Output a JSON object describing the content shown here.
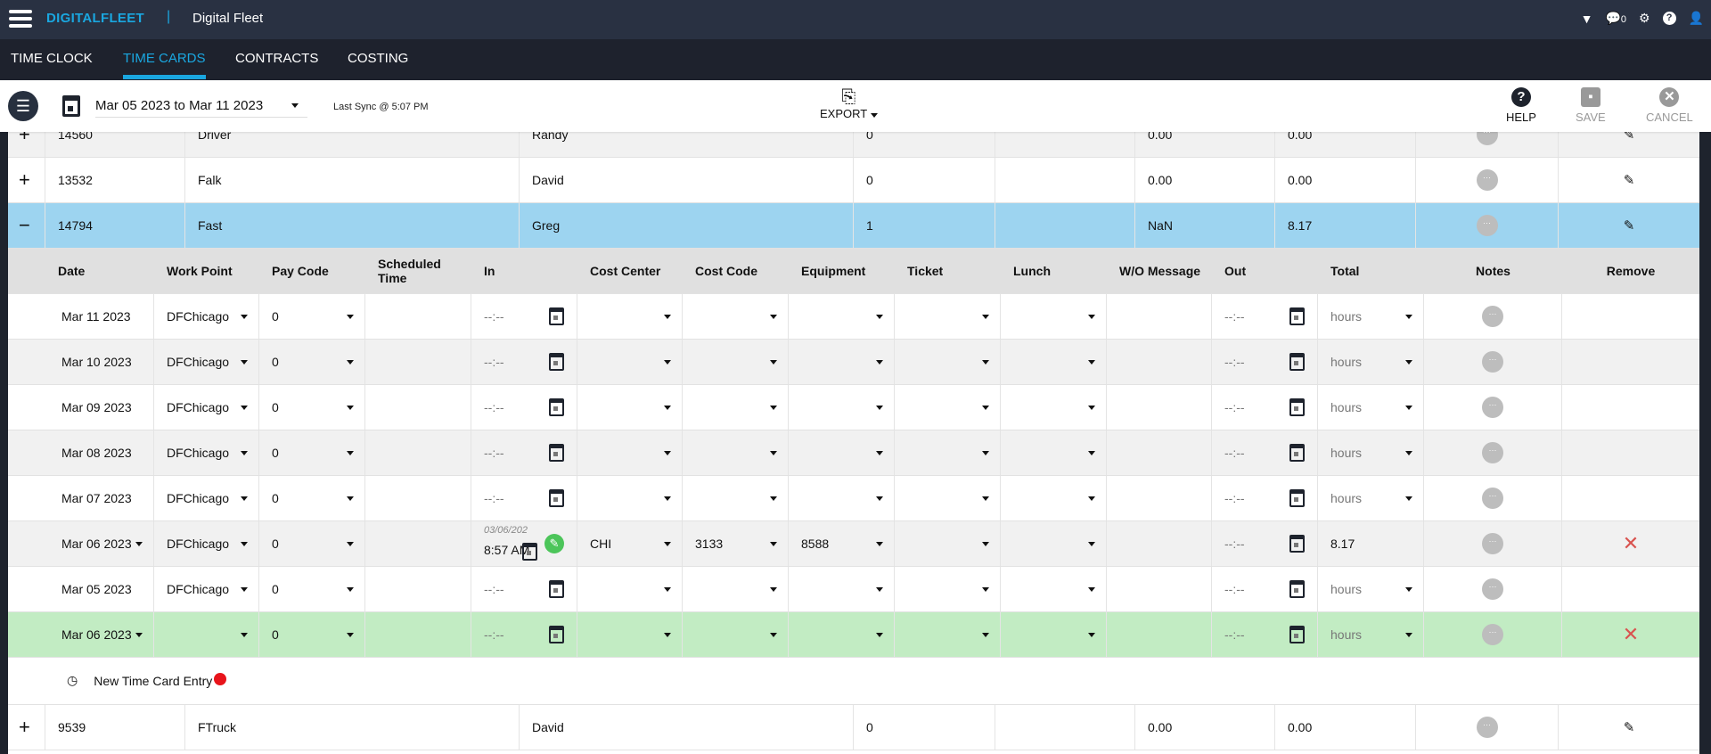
{
  "app": {
    "logo": "DIGITALFLEET",
    "separator": "|",
    "title": "Digital Fleet",
    "notification_count": "0"
  },
  "tabs": [
    {
      "label": "TIME CLOCK",
      "active": false
    },
    {
      "label": "TIME CARDS",
      "active": true
    },
    {
      "label": "CONTRACTS",
      "active": false
    },
    {
      "label": "COSTING",
      "active": false
    }
  ],
  "toolbar": {
    "date_range": "Mar 05 2023 to Mar 11 2023",
    "last_sync": "Last Sync @ 5:07 PM",
    "export": "EXPORT",
    "help": "HELP",
    "save": "SAVE",
    "cancel": "CANCEL"
  },
  "employees_top": [
    {
      "expand": "+",
      "id": "14560",
      "last": "Driver",
      "first": "Randy",
      "c1": "0",
      "c2": "",
      "c3": "0.00",
      "c4": "0.00",
      "bg": "#f1f1f1"
    },
    {
      "expand": "+",
      "id": "13532",
      "last": "Falk",
      "first": "David",
      "c1": "0",
      "c2": "",
      "c3": "0.00",
      "c4": "0.00",
      "bg": "#ffffff"
    },
    {
      "expand": "−",
      "id": "14794",
      "last": "Fast",
      "first": "Greg",
      "c1": "1",
      "c2": "",
      "c3": "NaN",
      "c4": "8.17",
      "bg": "#9dd4f0"
    }
  ],
  "detail_headers": [
    "Date",
    "Work Point",
    "Pay Code",
    "Scheduled Time",
    "In",
    "Cost Center",
    "Cost Code",
    "Equipment",
    "Ticket",
    "Lunch",
    "W/O Message",
    "Out",
    "Total",
    "Notes",
    "Remove"
  ],
  "detail_rows": [
    {
      "date": "Mar 11 2023",
      "date_dd": false,
      "work_point": "DFChicago",
      "pay_code": "0",
      "in": "--:--",
      "in_hint": "",
      "cost_center": "",
      "cost_code": "",
      "equipment": "",
      "ticket": "",
      "lunch": "",
      "out": "--:--",
      "total": "hours",
      "total_placeholder": true,
      "removable": false,
      "bg": "#ffffff"
    },
    {
      "date": "Mar 10 2023",
      "date_dd": false,
      "work_point": "DFChicago",
      "pay_code": "0",
      "in": "--:--",
      "in_hint": "",
      "cost_center": "",
      "cost_code": "",
      "equipment": "",
      "ticket": "",
      "lunch": "",
      "out": "--:--",
      "total": "hours",
      "total_placeholder": true,
      "removable": false,
      "bg": "#f1f1f1"
    },
    {
      "date": "Mar 09 2023",
      "date_dd": false,
      "work_point": "DFChicago",
      "pay_code": "0",
      "in": "--:--",
      "in_hint": "",
      "cost_center": "",
      "cost_code": "",
      "equipment": "",
      "ticket": "",
      "lunch": "",
      "out": "--:--",
      "total": "hours",
      "total_placeholder": true,
      "removable": false,
      "bg": "#ffffff"
    },
    {
      "date": "Mar 08 2023",
      "date_dd": false,
      "work_point": "DFChicago",
      "pay_code": "0",
      "in": "--:--",
      "in_hint": "",
      "cost_center": "",
      "cost_code": "",
      "equipment": "",
      "ticket": "",
      "lunch": "",
      "out": "--:--",
      "total": "hours",
      "total_placeholder": true,
      "removable": false,
      "bg": "#f1f1f1"
    },
    {
      "date": "Mar 07 2023",
      "date_dd": false,
      "work_point": "DFChicago",
      "pay_code": "0",
      "in": "--:--",
      "in_hint": "",
      "cost_center": "",
      "cost_code": "",
      "equipment": "",
      "ticket": "",
      "lunch": "",
      "out": "--:--",
      "total": "hours",
      "total_placeholder": true,
      "removable": false,
      "bg": "#ffffff"
    },
    {
      "date": "Mar 06 2023",
      "date_dd": true,
      "work_point": "DFChicago",
      "pay_code": "0",
      "in": "8:57 AM",
      "in_hint": "03/06/202",
      "cost_center": "CHI",
      "cost_code": "3133",
      "equipment": "8588",
      "ticket": "",
      "lunch": "",
      "out": "--:--",
      "total": "8.17",
      "total_placeholder": false,
      "removable": true,
      "bg": "#f1f1f1"
    },
    {
      "date": "Mar 05 2023",
      "date_dd": false,
      "work_point": "DFChicago",
      "pay_code": "0",
      "in": "--:--",
      "in_hint": "",
      "cost_center": "",
      "cost_code": "",
      "equipment": "",
      "ticket": "",
      "lunch": "",
      "out": "--:--",
      "total": "hours",
      "total_placeholder": true,
      "removable": false,
      "bg": "#ffffff"
    },
    {
      "date": "Mar 06 2023",
      "date_dd": true,
      "work_point": "",
      "pay_code": "0",
      "in": "--:--",
      "in_hint": "",
      "cost_center": "",
      "cost_code": "",
      "equipment": "",
      "ticket": "",
      "lunch": "",
      "out": "--:--",
      "total": "hours",
      "total_placeholder": true,
      "removable": true,
      "bg": "#c2ecc3"
    }
  ],
  "new_entry_label": "New Time Card Entry",
  "employees_bottom": [
    {
      "expand": "+",
      "id": "9539",
      "last": "FTruck",
      "first": "David",
      "c1": "0",
      "c2": "",
      "c3": "0.00",
      "c4": "0.00",
      "bg": "#ffffff"
    }
  ],
  "colors": {
    "accent": "#1aa7e0",
    "selected_row": "#9dd4f0",
    "new_row": "#c2ecc3",
    "remove": "#d9534f",
    "edit_badge": "#4cc55a",
    "alert_dot": "#e8141b"
  }
}
